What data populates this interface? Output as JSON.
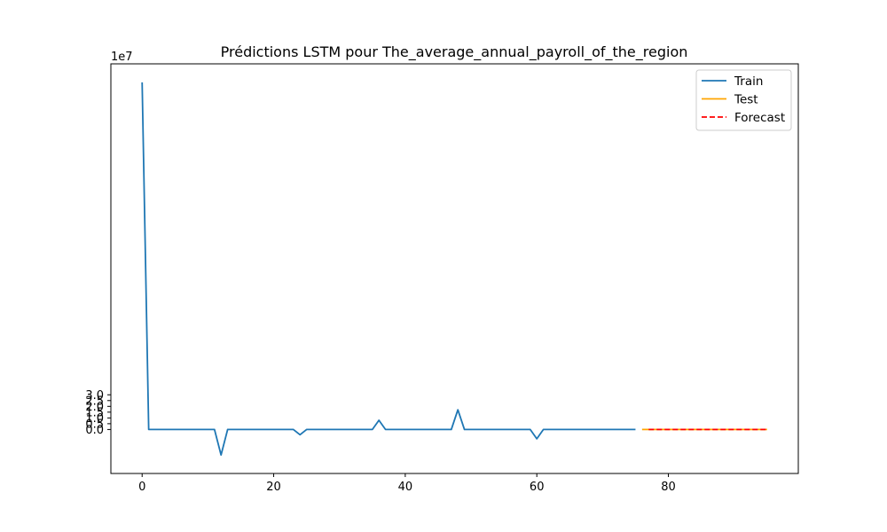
{
  "chart_data": {
    "type": "line",
    "title": "Prédictions LSTM pour The_average_annual_payroll_of_the_region",
    "xlabel": "",
    "ylabel": "",
    "y_offset_label": "1e7",
    "xlim": [
      -4.75,
      99.75
    ],
    "ylim": [
      -3.8,
      31.6
    ],
    "y_unit_multiplier": 10000000,
    "x_ticks": [
      0,
      20,
      40,
      60,
      80
    ],
    "y_ticks": [
      0.0,
      0.5,
      1.0,
      1.5,
      2.0,
      2.5,
      3.0
    ],
    "y_tick_labels": [
      "0.0",
      "0.5",
      "1.0",
      "1.5",
      "2.0",
      "2.5",
      "3.0"
    ],
    "grid": false,
    "legend_position": "top-right",
    "series": [
      {
        "name": "Train",
        "color": "#1f77b4",
        "style": "solid",
        "x": [
          0,
          1,
          2,
          3,
          4,
          5,
          6,
          7,
          8,
          9,
          10,
          11,
          12,
          13,
          14,
          15,
          16,
          17,
          18,
          19,
          20,
          21,
          22,
          23,
          24,
          25,
          26,
          27,
          28,
          29,
          30,
          31,
          32,
          33,
          34,
          35,
          36,
          37,
          38,
          39,
          40,
          41,
          42,
          43,
          44,
          45,
          46,
          47,
          48,
          49,
          50,
          51,
          52,
          53,
          54,
          55,
          56,
          57,
          58,
          59,
          60,
          61,
          62,
          63,
          64,
          65,
          66,
          67,
          68,
          69,
          70,
          71,
          72,
          73,
          74,
          75
        ],
        "y": [
          30.0,
          0,
          0,
          0,
          0,
          0,
          0,
          0,
          0,
          0,
          0,
          0,
          -2.2,
          0,
          0,
          0,
          0,
          0,
          0,
          0,
          0,
          0,
          0,
          0,
          -0.45,
          0,
          0,
          0,
          0,
          0,
          0,
          0,
          0,
          0,
          0,
          0,
          0.8,
          0,
          0,
          0,
          0,
          0,
          0,
          0,
          0,
          0,
          0,
          0,
          1.7,
          0,
          0,
          0,
          0,
          0,
          0,
          0,
          0,
          0,
          0,
          0,
          -0.8,
          0,
          0,
          0,
          0,
          0,
          0,
          0,
          0,
          0,
          0,
          0,
          0,
          0,
          0,
          0
        ]
      },
      {
        "name": "Test",
        "color": "#ffa500",
        "style": "solid",
        "x": [
          76,
          77,
          78,
          79,
          80,
          81,
          82,
          83,
          84,
          85,
          86,
          87,
          88,
          89,
          90,
          91,
          92,
          93,
          94,
          95
        ],
        "y": [
          0,
          0,
          0,
          0,
          0,
          0,
          0,
          0,
          0,
          0,
          0,
          0,
          0,
          0,
          0,
          0,
          0,
          0,
          0,
          0
        ]
      },
      {
        "name": "Forecast",
        "color": "#ff0000",
        "style": "dashed",
        "x": [
          77,
          78,
          79,
          80,
          81,
          82,
          83,
          84,
          85,
          86,
          87,
          88,
          89,
          90,
          91,
          92,
          93,
          94,
          95
        ],
        "y": [
          0,
          0,
          0,
          0,
          0,
          0,
          0,
          0,
          0,
          0,
          0,
          0,
          0,
          0,
          0,
          0,
          0,
          0,
          0
        ]
      }
    ]
  }
}
